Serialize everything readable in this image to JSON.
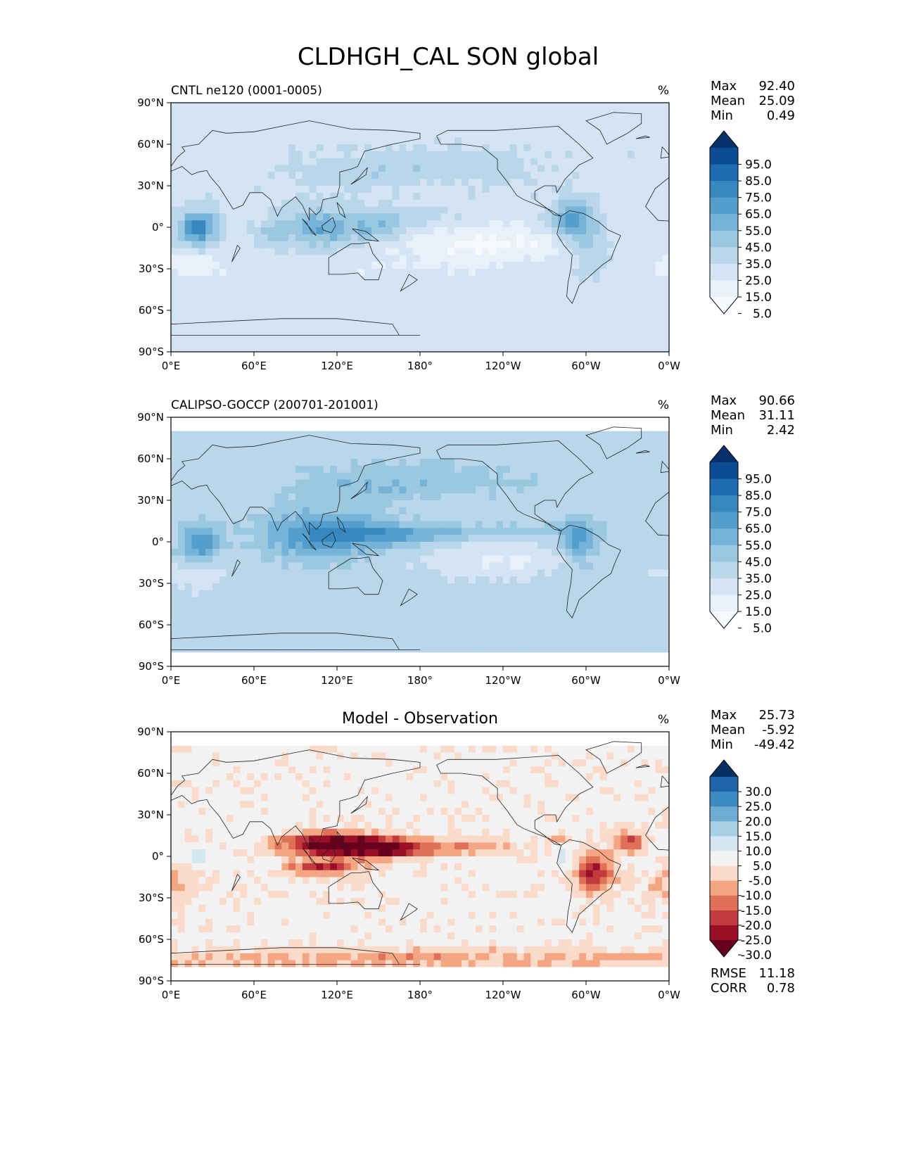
{
  "figure_title": "CLDHGH_CAL SON global",
  "chart_data": [
    {
      "type": "heatmap",
      "panel_title": "CNTL ne120 (0001-0005)",
      "center_title": "",
      "units": "%",
      "stats": [
        {
          "label": "Max",
          "value": "92.40"
        },
        {
          "label": "Mean",
          "value": "25.09"
        },
        {
          "label": "Min",
          "value": "0.49"
        }
      ],
      "colorbar": {
        "labels": [
          "95.0",
          "85.0",
          "75.0",
          "65.0",
          "55.0",
          "45.0",
          "35.0",
          "25.0",
          "15.0",
          "5.0"
        ],
        "colors": [
          "#08306b",
          "#0b4d94",
          "#1d6cb1",
          "#3787c0",
          "#539ecd",
          "#75b4d8",
          "#9ac8e0",
          "#bad6eb",
          "#d4e4f4",
          "#e8f1fa",
          "#f7fbff"
        ]
      },
      "xaxis": {
        "ticks": [
          "0°E",
          "60°E",
          "120°E",
          "180°",
          "120°W",
          "60°W",
          "0°W"
        ],
        "range": [
          0,
          360
        ]
      },
      "yaxis": {
        "ticks": [
          "90°N",
          "60°N",
          "30°N",
          "0°",
          "30°S",
          "60°S",
          "90°S"
        ],
        "range": [
          90,
          -90
        ]
      },
      "field": {
        "base": 22,
        "blobs": [
          {
            "lon": 20,
            "lat": 0,
            "sx": 9,
            "sy": 8,
            "amp": 50
          },
          {
            "lon": 72,
            "lat": -5,
            "sx": 10,
            "sy": 6,
            "amp": 15
          },
          {
            "lon": 110,
            "lat": 0,
            "sx": 18,
            "sy": 10,
            "amp": 32
          },
          {
            "lon": 150,
            "lat": 0,
            "sx": 14,
            "sy": 7,
            "amp": 22
          },
          {
            "lon": 175,
            "lat": 8,
            "sx": 20,
            "sy": 4,
            "amp": 10
          },
          {
            "lon": 290,
            "lat": 5,
            "sx": 10,
            "sy": 10,
            "amp": 40
          },
          {
            "lon": 305,
            "lat": -15,
            "sx": 8,
            "sy": 12,
            "amp": 18
          },
          {
            "lon": 130,
            "lat": 40,
            "sx": 30,
            "sy": 8,
            "amp": 10
          },
          {
            "lon": 200,
            "lat": 45,
            "sx": 40,
            "sy": 8,
            "amp": 10
          },
          {
            "lon": 230,
            "lat": -12,
            "sx": 45,
            "sy": 9,
            "amp": -20
          },
          {
            "lon": 15,
            "lat": -28,
            "sx": 18,
            "sy": 6,
            "amp": -14
          },
          {
            "lon": 160,
            "lat": -30,
            "sx": 50,
            "sy": 8,
            "amp": -6
          }
        ]
      }
    },
    {
      "type": "heatmap",
      "panel_title": "CALIPSO-GOCCP (200701-201001)",
      "center_title": "",
      "units": "%",
      "stats": [
        {
          "label": "Max",
          "value": "90.66"
        },
        {
          "label": "Mean",
          "value": "31.11"
        },
        {
          "label": "Min",
          "value": "2.42"
        }
      ],
      "colorbar": {
        "labels": [
          "95.0",
          "85.0",
          "75.0",
          "65.0",
          "55.0",
          "45.0",
          "35.0",
          "25.0",
          "15.0",
          "5.0"
        ],
        "colors": [
          "#08306b",
          "#0b4d94",
          "#1d6cb1",
          "#3787c0",
          "#539ecd",
          "#75b4d8",
          "#9ac8e0",
          "#bad6eb",
          "#d4e4f4",
          "#e8f1fa",
          "#f7fbff"
        ]
      },
      "xaxis": {
        "ticks": [
          "0°E",
          "60°E",
          "120°E",
          "180°",
          "120°W",
          "60°W",
          "0°W"
        ],
        "range": [
          0,
          360
        ]
      },
      "yaxis": {
        "ticks": [
          "90°N",
          "60°N",
          "30°N",
          "0°",
          "30°S",
          "60°S",
          "90°S"
        ],
        "range": [
          90,
          -90
        ]
      },
      "valid_lat": [
        -82,
        82
      ],
      "field": {
        "base": 29,
        "blobs": [
          {
            "lon": 22,
            "lat": 0,
            "sx": 10,
            "sy": 9,
            "amp": 35
          },
          {
            "lon": 110,
            "lat": 5,
            "sx": 30,
            "sy": 12,
            "amp": 38
          },
          {
            "lon": 160,
            "lat": 5,
            "sx": 25,
            "sy": 6,
            "amp": 20
          },
          {
            "lon": 220,
            "lat": 7,
            "sx": 50,
            "sy": 4,
            "amp": 14
          },
          {
            "lon": 295,
            "lat": 0,
            "sx": 10,
            "sy": 12,
            "amp": 30
          },
          {
            "lon": 130,
            "lat": 40,
            "sx": 40,
            "sy": 10,
            "amp": 12
          },
          {
            "lon": 200,
            "lat": 45,
            "sx": 50,
            "sy": 10,
            "amp": 10
          },
          {
            "lon": 240,
            "lat": -12,
            "sx": 40,
            "sy": 8,
            "amp": -16
          },
          {
            "lon": 15,
            "lat": -25,
            "sx": 15,
            "sy": 6,
            "amp": -12
          }
        ]
      }
    },
    {
      "type": "heatmap",
      "panel_title": "",
      "center_title": "Model - Observation",
      "units": "%",
      "stats": [
        {
          "label": "Max",
          "value": "25.73"
        },
        {
          "label": "Mean",
          "value": "-5.92"
        },
        {
          "label": "Min",
          "value": "-49.42"
        }
      ],
      "bottom_stats": [
        {
          "label": "RMSE",
          "value": "11.18"
        },
        {
          "label": "CORR",
          "value": "0.78"
        }
      ],
      "colorbar": {
        "labels": [
          "30.0",
          "25.0",
          "20.0",
          "15.0",
          "10.0",
          "5.0",
          "-5.0",
          "-10.0",
          "-15.0",
          "-20.0",
          "-25.0",
          "-30.0"
        ],
        "colors": [
          "#053061",
          "#1f63a8",
          "#3c8bc3",
          "#6eacd2",
          "#a7d0e4",
          "#d3e6f1",
          "#f2f2f2",
          "#fadbc9",
          "#f4a683",
          "#e07159",
          "#c13a3d",
          "#9a1027",
          "#67001f"
        ]
      },
      "xaxis": {
        "ticks": [
          "0°E",
          "60°E",
          "120°E",
          "180°",
          "120°W",
          "60°W",
          "0°W"
        ],
        "range": [
          0,
          360
        ]
      },
      "yaxis": {
        "ticks": [
          "90°N",
          "60°N",
          "30°N",
          "0°",
          "30°S",
          "60°S",
          "90°S"
        ],
        "range": [
          90,
          -90
        ]
      },
      "valid_lat": [
        -82,
        82
      ],
      "field": {
        "base": -3,
        "blobs": [
          {
            "lon": 120,
            "lat": 8,
            "sx": 28,
            "sy": 6,
            "amp": -36
          },
          {
            "lon": 110,
            "lat": -9,
            "sx": 18,
            "sy": 3,
            "amp": -22
          },
          {
            "lon": 160,
            "lat": 5,
            "sx": 22,
            "sy": 5,
            "amp": -18
          },
          {
            "lon": 210,
            "lat": 7,
            "sx": 30,
            "sy": 4,
            "amp": -10
          },
          {
            "lon": 305,
            "lat": -12,
            "sx": 10,
            "sy": 10,
            "amp": -22
          },
          {
            "lon": 330,
            "lat": 10,
            "sx": 8,
            "sy": 6,
            "amp": -18
          },
          {
            "lon": 280,
            "lat": 12,
            "sx": 4,
            "sy": 3,
            "amp": -14
          },
          {
            "lon": 20,
            "lat": 0,
            "sx": 5,
            "sy": 4,
            "amp": 18
          },
          {
            "lon": 285,
            "lat": -2,
            "sx": 4,
            "sy": 5,
            "amp": 12
          },
          {
            "lon": 60,
            "lat": 20,
            "sx": 10,
            "sy": 6,
            "amp": 6
          },
          {
            "lon": 180,
            "lat": -74,
            "sx": 200,
            "sy": 5,
            "amp": -10
          },
          {
            "lon": 0,
            "lat": -20,
            "sx": 15,
            "sy": 10,
            "amp": -8
          }
        ]
      }
    }
  ]
}
